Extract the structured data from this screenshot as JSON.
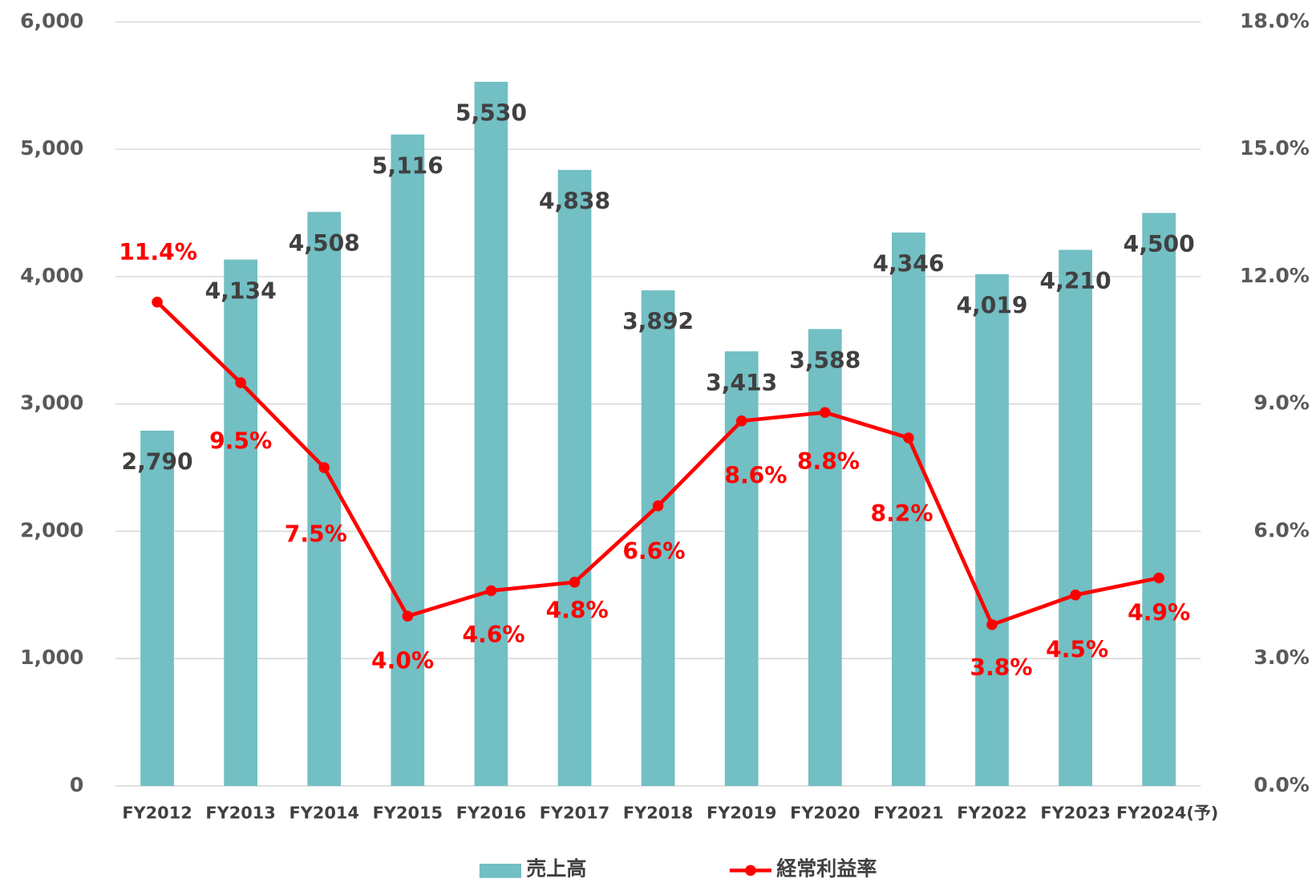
{
  "chart_data": {
    "type": "bar_line",
    "categories": [
      "FY2012",
      "FY2013",
      "FY2014",
      "FY2015",
      "FY2016",
      "FY2017",
      "FY2018",
      "FY2019",
      "FY2020",
      "FY2021",
      "FY2022",
      "FY2023",
      "FY2024(予)"
    ],
    "series": [
      {
        "name": "売上高",
        "color": "#72bfc4",
        "type": "bar",
        "values": [
          2790,
          4134,
          4508,
          5116,
          5530,
          4838,
          3892,
          3413,
          3588,
          4346,
          4019,
          4210,
          4500
        ],
        "value_labels": [
          "2,790",
          "4,134",
          "4,508",
          "5,116",
          "5,530",
          "4,838",
          "3,892",
          "3,413",
          "3,588",
          "4,346",
          "4,019",
          "4,210",
          "4,500"
        ]
      },
      {
        "name": "経常利益率",
        "color": "#ff0000",
        "type": "line",
        "axis": "y2",
        "values": [
          11.4,
          9.5,
          7.5,
          4.0,
          4.6,
          4.8,
          6.6,
          8.6,
          8.8,
          8.2,
          3.8,
          4.5,
          4.9
        ],
        "value_labels": [
          "11.4%",
          "9.5%",
          "7.5%",
          "4.0%",
          "4.6%",
          "4.8%",
          "6.6%",
          "8.6%",
          "8.8%",
          "8.2%",
          "3.8%",
          "4.5%",
          "4.9%"
        ]
      }
    ],
    "ylim": [
      0,
      6000
    ],
    "yticks": [
      0,
      {
        "value": 1000,
        "label": "1,000"
      },
      {
        "value": 2000,
        "label": "2,000"
      },
      {
        "value": 3000,
        "label": "3,000"
      },
      {
        "value": 4000,
        "label": "4,000"
      },
      {
        "value": 5000,
        "label": "5,000"
      },
      {
        "value": 6000,
        "label": "6,000"
      }
    ],
    "y2lim": [
      0,
      18
    ],
    "y2ticks": [
      {
        "value": 0,
        "label": "0.0%"
      },
      {
        "value": 3,
        "label": "3.0%"
      },
      {
        "value": 6,
        "label": "6.0%"
      },
      {
        "value": 9,
        "label": "9.0%"
      },
      {
        "value": 12,
        "label": "12.0%"
      },
      {
        "value": 15,
        "label": "15.0%"
      },
      {
        "value": 18,
        "label": "18.0%"
      }
    ],
    "grid": true,
    "legend": "bottom"
  }
}
